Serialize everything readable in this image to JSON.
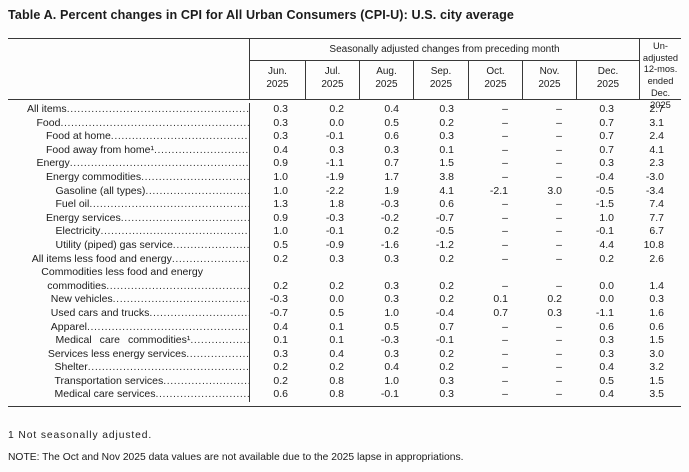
{
  "colors": {
    "text": "#1c1c1c",
    "line": "#383838",
    "background": "#fdfdfd"
  },
  "title": "Table A. Percent changes in CPI for All Urban Consumers (CPI-U): U.S. city average",
  "table": {
    "spanner": "Seasonally adjusted changes from preceding month",
    "month_columns": [
      {
        "line1": "Jun.",
        "line2": "2025"
      },
      {
        "line1": "Jul.",
        "line2": "2025"
      },
      {
        "line1": "Aug.",
        "line2": "2025"
      },
      {
        "line1": "Sep.",
        "line2": "2025"
      },
      {
        "line1": "Oct.",
        "line2": "2025"
      },
      {
        "line1": "Nov.",
        "line2": "2025"
      },
      {
        "line1": "Dec.",
        "line2": "2025"
      }
    ],
    "unadjusted_header": [
      "Un-",
      "adjusted",
      "12-mos.",
      "ended",
      "Dec. 2025"
    ],
    "rows": [
      {
        "label": "All items",
        "indent": 0,
        "values": [
          "0.3",
          "0.2",
          "0.4",
          "0.3",
          "–",
          "–",
          "0.3",
          "2.7"
        ]
      },
      {
        "label": "Food",
        "indent": 1,
        "values": [
          "0.3",
          "0.0",
          "0.5",
          "0.2",
          "–",
          "–",
          "0.7",
          "3.1"
        ]
      },
      {
        "label": "Food at home",
        "indent": 2,
        "values": [
          "0.3",
          "-0.1",
          "0.6",
          "0.3",
          "–",
          "–",
          "0.7",
          "2.4"
        ]
      },
      {
        "label": "Food away from home¹",
        "indent": 2,
        "values": [
          "0.4",
          "0.3",
          "0.3",
          "0.1",
          "–",
          "–",
          "0.7",
          "4.1"
        ]
      },
      {
        "label": "Energy",
        "indent": 1,
        "values": [
          "0.9",
          "-1.1",
          "0.7",
          "1.5",
          "–",
          "–",
          "0.3",
          "2.3"
        ]
      },
      {
        "label": "Energy commodities",
        "indent": 2,
        "values": [
          "1.0",
          "-1.9",
          "1.7",
          "3.8",
          "–",
          "–",
          "-0.4",
          "-3.0"
        ]
      },
      {
        "label": "Gasoline (all types)",
        "indent": 3,
        "values": [
          "1.0",
          "-2.2",
          "1.9",
          "4.1",
          "-2.1",
          "3.0",
          "-0.5",
          "-3.4"
        ]
      },
      {
        "label": "Fuel oil",
        "indent": 3,
        "values": [
          "1.3",
          "1.8",
          "-0.3",
          "0.6",
          "–",
          "–",
          "-1.5",
          "7.4"
        ]
      },
      {
        "label": "Energy services",
        "indent": 2,
        "values": [
          "0.9",
          "-0.3",
          "-0.2",
          "-0.7",
          "–",
          "–",
          "1.0",
          "7.7"
        ]
      },
      {
        "label": "Electricity",
        "indent": 3,
        "values": [
          "1.0",
          "-0.1",
          "0.2",
          "-0.5",
          "–",
          "–",
          "-0.1",
          "6.7"
        ]
      },
      {
        "label": "Utility (piped) gas service",
        "indent": 3,
        "values": [
          "0.5",
          "-0.9",
          "-1.6",
          "-1.2",
          "–",
          "–",
          "4.4",
          "10.8"
        ]
      },
      {
        "label": "All items less food and energy",
        "indent": 0.5,
        "values": [
          "0.2",
          "0.3",
          "0.3",
          "0.2",
          "–",
          "–",
          "0.2",
          "2.6"
        ]
      },
      {
        "label": "Commodities less food and energy",
        "label2": "commodities",
        "indent": 1.5,
        "values": [
          "0.2",
          "0.2",
          "0.3",
          "0.2",
          "–",
          "–",
          "0.0",
          "1.4"
        ]
      },
      {
        "label": "New vehicles",
        "indent": 2.5,
        "values": [
          "-0.3",
          "0.0",
          "0.3",
          "0.2",
          "0.1",
          "0.2",
          "0.0",
          "0.3"
        ]
      },
      {
        "label": "Used cars and trucks",
        "indent": 2.5,
        "values": [
          "-0.7",
          "0.5",
          "1.0",
          "-0.4",
          "0.7",
          "0.3",
          "-1.1",
          "1.6"
        ]
      },
      {
        "label": "Apparel",
        "indent": 2.5,
        "values": [
          "0.4",
          "0.1",
          "0.5",
          "0.7",
          "–",
          "–",
          "0.6",
          "0.6"
        ]
      },
      {
        "label": "Medical care commodities¹",
        "indent": 3,
        "wide": true,
        "values": [
          "0.1",
          "0.1",
          "-0.3",
          "-0.1",
          "–",
          "–",
          "0.3",
          "1.5"
        ]
      },
      {
        "label": "Services less energy services",
        "indent": 2.2,
        "values": [
          "0.3",
          "0.4",
          "0.3",
          "0.2",
          "–",
          "–",
          "0.3",
          "3.0"
        ]
      },
      {
        "label": "Shelter",
        "indent": 2.9,
        "values": [
          "0.2",
          "0.2",
          "0.4",
          "0.2",
          "–",
          "–",
          "0.4",
          "3.2"
        ]
      },
      {
        "label": "Transportation services",
        "indent": 2.9,
        "values": [
          "0.2",
          "0.8",
          "1.0",
          "0.3",
          "–",
          "–",
          "0.5",
          "1.5"
        ]
      },
      {
        "label": "Medical care services",
        "indent": 2.9,
        "values": [
          "0.6",
          "0.8",
          "-0.1",
          "0.3",
          "–",
          "–",
          "0.4",
          "3.5"
        ]
      }
    ]
  },
  "footnotes": {
    "footnote1": "1 Not seasonally adjusted.",
    "note": "NOTE: The Oct and Nov 2025 data values are not available due to the 2025 lapse in appropriations."
  }
}
